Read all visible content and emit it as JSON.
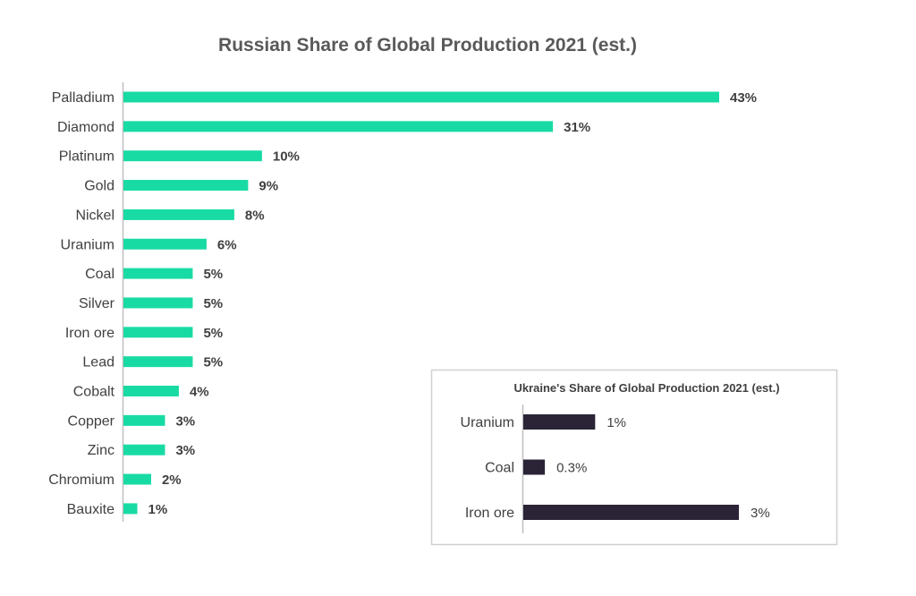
{
  "colors": {
    "main_bar": "#18dba4",
    "inset_bar": "#2a2436",
    "axis": "#bfbfbf",
    "panel_border": "#d0d0d0"
  },
  "chart_data": [
    {
      "type": "bar",
      "orientation": "horizontal",
      "title": "Russian Share of Global Production 2021 (est.)",
      "categories": [
        "Palladium",
        "Diamond",
        "Platinum",
        "Gold",
        "Nickel",
        "Uranium",
        "Coal",
        "Silver",
        "Iron ore",
        "Lead",
        "Cobalt",
        "Copper",
        "Zinc",
        "Chromium",
        "Bauxite"
      ],
      "values": [
        43,
        31,
        10,
        9,
        8,
        6,
        5,
        5,
        5,
        5,
        4,
        3,
        3,
        2,
        1
      ],
      "labels": [
        "43%",
        "31%",
        "10%",
        "9%",
        "8%",
        "6%",
        "5%",
        "5%",
        "5%",
        "5%",
        "4%",
        "3%",
        "3%",
        "2%",
        "1%"
      ],
      "xlim": [
        0,
        43
      ]
    },
    {
      "type": "bar",
      "orientation": "horizontal",
      "title": "Ukraine's Share of Global Production 2021 (est.)",
      "categories": [
        "Uranium",
        "Coal",
        "Iron ore"
      ],
      "values": [
        1,
        0.3,
        3
      ],
      "labels": [
        "1%",
        "0.3%",
        "3%"
      ],
      "xlim": [
        0,
        3
      ]
    }
  ]
}
